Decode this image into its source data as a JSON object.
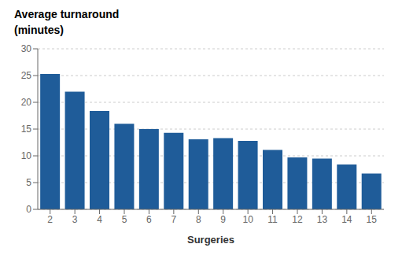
{
  "chart_data": {
    "type": "bar",
    "title": "Average turnaround",
    "subtitle": "(minutes)",
    "xlabel": "Surgeries",
    "categories": [
      "2",
      "3",
      "4",
      "5",
      "6",
      "7",
      "8",
      "9",
      "10",
      "11",
      "12",
      "13",
      "14",
      "15"
    ],
    "values": [
      25.3,
      22.0,
      18.4,
      16.0,
      15.0,
      14.3,
      13.1,
      13.3,
      12.8,
      11.1,
      9.7,
      9.5,
      8.4,
      6.7
    ],
    "color": "#1f5c99",
    "ylim": [
      0,
      30
    ],
    "yticks": [
      0,
      5,
      10,
      15,
      20,
      25,
      30
    ],
    "grid": true
  }
}
